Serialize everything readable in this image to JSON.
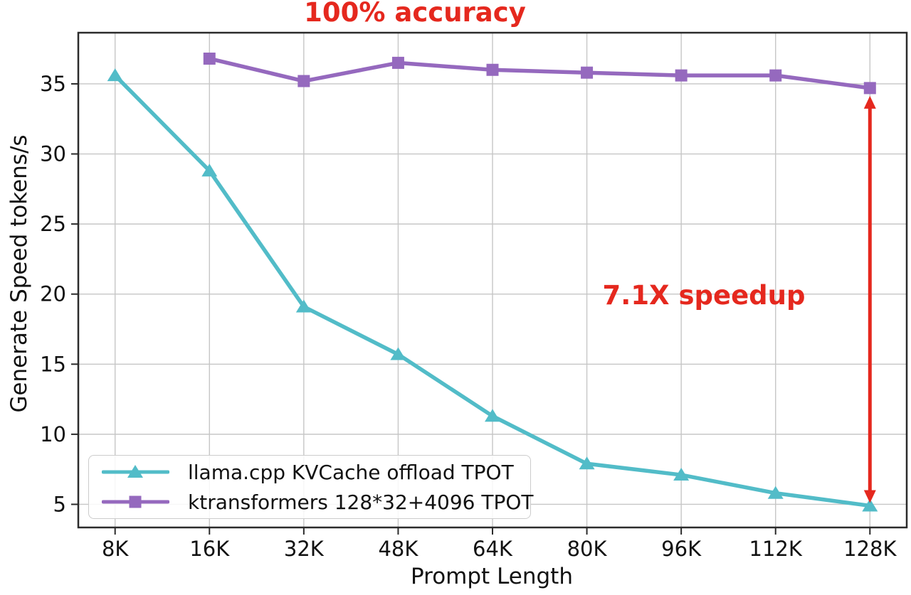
{
  "colors": {
    "annotation_red": "#e5281e",
    "grid": "#c6c6c6",
    "axis": "#2b2b2b",
    "text": "#111111",
    "legend_border": "#cccccc"
  },
  "chart_data": {
    "type": "line",
    "title": "100% accuracy",
    "xlabel": "Prompt Length",
    "ylabel": "Generate Speed tokens/s",
    "categories": [
      "8K",
      "16K",
      "32K",
      "48K",
      "64K",
      "80K",
      "96K",
      "112K",
      "128K"
    ],
    "series": [
      {
        "name": "llama.cpp KVCache offload TPOT",
        "marker": "triangle",
        "color": "#52bcc8",
        "values": [
          35.6,
          28.8,
          19.1,
          15.7,
          11.3,
          7.9,
          7.1,
          5.8,
          4.9
        ]
      },
      {
        "name": "ktransformers 128*32+4096 TPOT",
        "marker": "square",
        "color": "#9569be",
        "values": [
          null,
          36.8,
          35.2,
          36.5,
          36.0,
          35.8,
          35.6,
          35.6,
          34.7
        ]
      }
    ],
    "yticks": [
      5,
      10,
      15,
      20,
      25,
      30,
      35
    ],
    "ylim": [
      3.35,
      38.65
    ],
    "grid": true,
    "legend_position": "lower left",
    "annotations": [
      {
        "type": "text",
        "text": "7.1X speedup",
        "color": "#e5281e"
      },
      {
        "type": "vertical_double_arrow",
        "category": "128K",
        "from_value": 34.7,
        "to_value": 4.9,
        "color": "#e5281e"
      }
    ]
  }
}
